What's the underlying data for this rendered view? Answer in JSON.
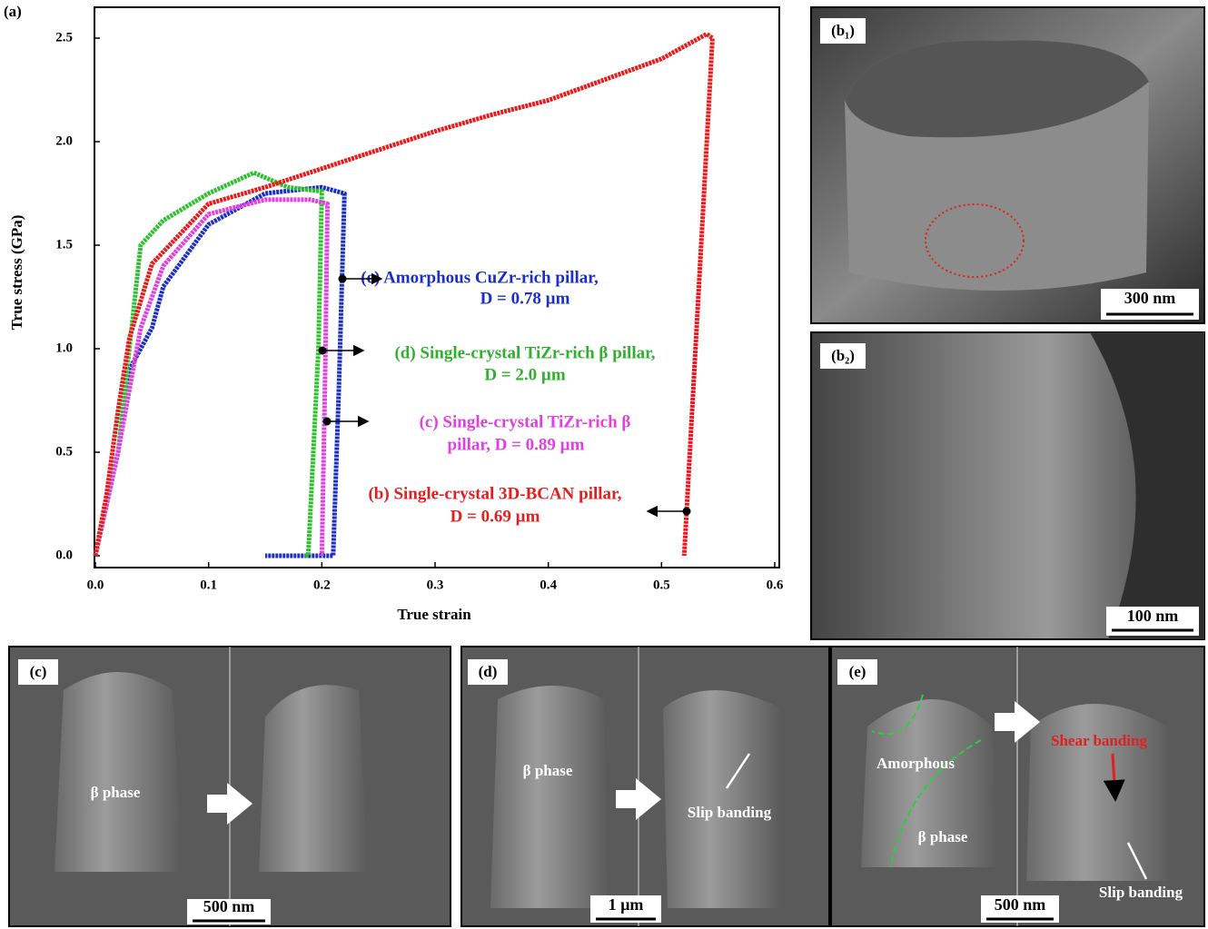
{
  "chart_data": {
    "type": "line",
    "panel_label": "(a)",
    "x_label": "True strain",
    "y_label": "True stress (GPa)",
    "xlim": [
      0,
      0.6
    ],
    "ylim": [
      0,
      2.5
    ],
    "xticks": [
      {
        "value": 0,
        "label": "0.0"
      },
      {
        "value": 0.1,
        "label": "0.1"
      },
      {
        "value": 0.2,
        "label": "0.2"
      },
      {
        "value": 0.3,
        "label": "0.3"
      },
      {
        "value": 0.4,
        "label": "0.4"
      },
      {
        "value": 0.5,
        "label": "0.5"
      },
      {
        "value": 0.6,
        "label": "0.6"
      }
    ],
    "yticks": [
      {
        "value": 0,
        "label": "0.0"
      },
      {
        "value": 0.5,
        "label": "0.5"
      },
      {
        "value": 1,
        "label": "1.0"
      },
      {
        "value": 1.5,
        "label": "1.5"
      },
      {
        "value": 2,
        "label": "2.0"
      },
      {
        "value": 2.5,
        "label": "2.5"
      }
    ],
    "series": [
      {
        "color": "#1c2fc4",
        "x": [
          0,
          0.02,
          0.03,
          0.05,
          0.06,
          0.08,
          0.1,
          0.15,
          0.2,
          0.22,
          0.215,
          0.21,
          0.15
        ],
        "values": [
          0,
          0.5,
          0.9,
          1.1,
          1.3,
          1.45,
          1.6,
          1.75,
          1.78,
          1.75,
          0.8,
          0,
          0
        ]
      },
      {
        "color": "#2fc02f",
        "x": [
          0,
          0.02,
          0.03,
          0.04,
          0.06,
          0.1,
          0.14,
          0.17,
          0.2,
          0.197,
          0.188,
          0.185
        ],
        "values": [
          0,
          0.5,
          1.0,
          1.5,
          1.62,
          1.75,
          1.85,
          1.78,
          1.76,
          1.0,
          0,
          0
        ]
      },
      {
        "color": "#e040e0",
        "x": [
          0,
          0.02,
          0.04,
          0.06,
          0.1,
          0.15,
          0.19,
          0.205,
          0.203,
          0.2
        ],
        "values": [
          0,
          0.5,
          1.1,
          1.4,
          1.65,
          1.72,
          1.72,
          1.7,
          0.9,
          0
        ]
      },
      {
        "color": "#e81a1a",
        "x": [
          0,
          0.01,
          0.02,
          0.03,
          0.05,
          0.1,
          0.15,
          0.2,
          0.25,
          0.3,
          0.35,
          0.4,
          0.45,
          0.5,
          0.54,
          0.545,
          0.52
        ],
        "values": [
          0,
          0.3,
          0.7,
          1.05,
          1.41,
          1.7,
          1.78,
          1.87,
          1.96,
          2.05,
          2.13,
          2.2,
          2.3,
          2.4,
          2.52,
          2.5,
          0
        ]
      }
    ],
    "annotations": [
      {
        "color": "#1c2fc4",
        "lines": [
          "(e) Amorphous CuZr-rich pillar,",
          "D = 0.78 µm"
        ]
      },
      {
        "color": "#2fb02f",
        "lines": [
          "(d) Single-crystal TiZr-rich β pillar,",
          "D = 2.0 µm"
        ]
      },
      {
        "color": "#e040e0",
        "lines": [
          "(c) Single-crystal TiZr-rich β",
          "pillar, D = 0.89 µm"
        ]
      },
      {
        "color": "#e02020",
        "lines": [
          "(b) Single-crystal 3D-BCAN pillar,",
          "D = 0.69 µm"
        ]
      }
    ]
  },
  "panels": [
    {
      "label": "(b₁)",
      "scale": "300 nm"
    },
    {
      "label": "(b₂)",
      "scale": "100 nm"
    },
    {
      "label": "(c)",
      "scale": "500 nm",
      "notes": [
        "β phase"
      ]
    },
    {
      "label": "(d)",
      "scale": "1 µm",
      "notes": [
        "β phase",
        "Slip banding"
      ]
    },
    {
      "label": "(e)",
      "scale": "500 nm",
      "notes": [
        "Amorphous",
        "β phase",
        "Shear banding",
        "Slip banding"
      ]
    }
  ]
}
